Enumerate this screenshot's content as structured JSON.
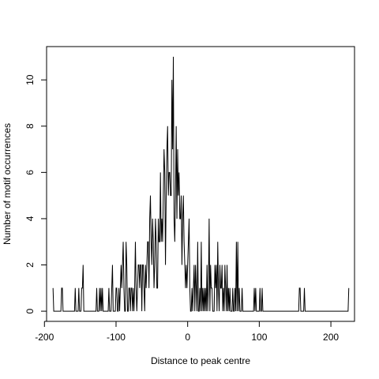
{
  "chart_data": {
    "type": "line",
    "title": "",
    "xlabel": "Distance to peak centre",
    "ylabel": "Number of motif occurrences",
    "xlim": [
      -197,
      233
    ],
    "ylim": [
      -0.44,
      11.44
    ],
    "xticks": [
      -200,
      -100,
      0,
      100,
      200
    ],
    "yticks": [
      0,
      2,
      4,
      6,
      8,
      10
    ],
    "xtick_labels": [
      "-200",
      "-100",
      "0",
      "100",
      "200"
    ],
    "ytick_labels": [
      "0",
      "2",
      "4",
      "6",
      "8",
      "10"
    ],
    "grid": false,
    "x_start": -188,
    "x_step": 1,
    "y": [
      1,
      0,
      0,
      0,
      0,
      0,
      0,
      0,
      0,
      0,
      0,
      0,
      1,
      1,
      0,
      0,
      0,
      0,
      0,
      0,
      0,
      0,
      0,
      0,
      0,
      0,
      0,
      0,
      0,
      0,
      0,
      1,
      0,
      0,
      0,
      0,
      1,
      0,
      0,
      0,
      1,
      1,
      2,
      0,
      0,
      0,
      0,
      0,
      0,
      0,
      0,
      0,
      0,
      0,
      0,
      0,
      0,
      0,
      0,
      0,
      0,
      1,
      0,
      0,
      0,
      1,
      0,
      1,
      0,
      1,
      0,
      0,
      0,
      0,
      0,
      0,
      0,
      0,
      1,
      0,
      0,
      0,
      1,
      2,
      0,
      0,
      0,
      0,
      1,
      1,
      0,
      0,
      1,
      0,
      1,
      2,
      1,
      2,
      3,
      1,
      0,
      0,
      3,
      2,
      0,
      0,
      1,
      1,
      0,
      1,
      1,
      0,
      1,
      0,
      1,
      3,
      1,
      0,
      1,
      2,
      2,
      1,
      2,
      2,
      0,
      2,
      2,
      1,
      0,
      2,
      1,
      2,
      3,
      3,
      1,
      4,
      5,
      3,
      2,
      4,
      3,
      1,
      2,
      4,
      3,
      1,
      1,
      4,
      3,
      3,
      6,
      3,
      4,
      3,
      5,
      7,
      6,
      2,
      5,
      7,
      8,
      5,
      6,
      6,
      5,
      5,
      10,
      7,
      11,
      4,
      3,
      5,
      8,
      4,
      7,
      5,
      6,
      4,
      4,
      5,
      2,
      4,
      5,
      3,
      2,
      1,
      2,
      1,
      2,
      3,
      4,
      1,
      0,
      0,
      1,
      0,
      1,
      2,
      0,
      2,
      1,
      0,
      3,
      0,
      0,
      1,
      0,
      3,
      0,
      1,
      0,
      1,
      0,
      1,
      0,
      2,
      0,
      1,
      4,
      0,
      2,
      1,
      1,
      0,
      0,
      0,
      2,
      1,
      2,
      0,
      3,
      1,
      0,
      2,
      1,
      1,
      2,
      0,
      1,
      0,
      2,
      1,
      0,
      2,
      0,
      1,
      0,
      1,
      0,
      0,
      0,
      1,
      0,
      0,
      1,
      0,
      3,
      0,
      3,
      0,
      1,
      0,
      0,
      0,
      1,
      0,
      0,
      0,
      0,
      0,
      0,
      0,
      0,
      0,
      0,
      0,
      0,
      0,
      0,
      0,
      0,
      1,
      0,
      1,
      0,
      0,
      0,
      0,
      0,
      1,
      0,
      0,
      1,
      0,
      0,
      0,
      0,
      0,
      0,
      0,
      0,
      0,
      0,
      0,
      0,
      0,
      0,
      0,
      0,
      0,
      0,
      0,
      0,
      0,
      0,
      0,
      0,
      0,
      0,
      0,
      0,
      0,
      0,
      0,
      0,
      0,
      0,
      0,
      0,
      0,
      0,
      0,
      0,
      0,
      0,
      0,
      0,
      0,
      0,
      0,
      0,
      0,
      0,
      0,
      1,
      1,
      0,
      0,
      0,
      0,
      0,
      1,
      0,
      0,
      0,
      0,
      0,
      0,
      0,
      0,
      0,
      0,
      0,
      0,
      0,
      0,
      0,
      0,
      0,
      0,
      0,
      0,
      0,
      0,
      0,
      0,
      0,
      0,
      0,
      0,
      0,
      0,
      0,
      0,
      0,
      0,
      0,
      0,
      0,
      0,
      0,
      0,
      0,
      0,
      0,
      0,
      0,
      0,
      0,
      0,
      0,
      0,
      0,
      0,
      0,
      0,
      0,
      0,
      0,
      0,
      0,
      0,
      0,
      1
    ]
  }
}
